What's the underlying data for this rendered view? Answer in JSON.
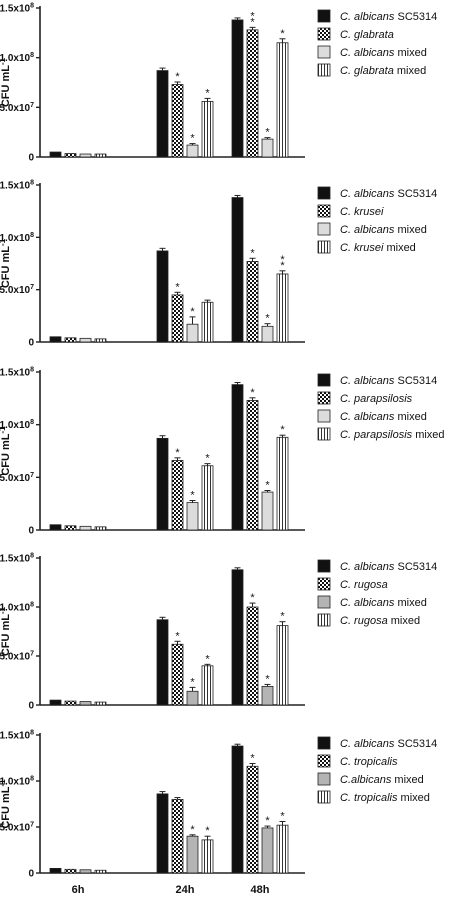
{
  "figure": {
    "categories": [
      "6h",
      "24h",
      "48h"
    ],
    "ylabel": "CFU mL",
    "ylabel_sup": "-1",
    "yticks": [
      {
        "value": 0,
        "mantissa": "0",
        "exp": ""
      },
      {
        "value": 50000000,
        "mantissa": "5.0x10",
        "exp": "7"
      },
      {
        "value": 100000000,
        "mantissa": "1.0x10",
        "exp": "8"
      },
      {
        "value": 150000000,
        "mantissa": "1.5x10",
        "exp": "8"
      }
    ],
    "ylim": [
      0,
      150000000
    ],
    "star": "*",
    "double_star": "**",
    "colors": {
      "black": "#111111",
      "light": "#dcdcdc",
      "mid": "#b4b4b4",
      "white": "#ffffff",
      "axis": "#222222"
    }
  },
  "chart_data": [
    {
      "type": "bar",
      "categories": [
        "6h",
        "24h",
        "48h"
      ],
      "series": [
        {
          "name_italic": "C. albicans",
          "name_rest": " SC5314",
          "pattern": "black",
          "values": [
            5000000,
            87000000,
            138000000
          ],
          "errors": [
            400000,
            2500000,
            2000000
          ],
          "marks": [
            "",
            "",
            ""
          ]
        },
        {
          "name_italic": "C. glabrata",
          "name_rest": "",
          "pattern": "checker",
          "values": [
            3500000,
            73000000,
            128000000
          ],
          "errors": [
            300000,
            2500000,
            2500000
          ],
          "marks": [
            "",
            "*",
            "**"
          ]
        },
        {
          "name_italic": "C. albicans",
          "name_rest": " mixed",
          "pattern": "light",
          "values": [
            3000000,
            12000000,
            18000000
          ],
          "errors": [
            300000,
            1500000,
            1500000
          ],
          "marks": [
            "",
            "*",
            "*"
          ]
        },
        {
          "name_italic": "C. glabrata",
          "name_rest": " mixed",
          "pattern": "stripes",
          "values": [
            3000000,
            56000000,
            115000000
          ],
          "errors": [
            300000,
            3000000,
            4000000
          ],
          "marks": [
            "",
            "*",
            "*"
          ]
        }
      ]
    },
    {
      "type": "bar",
      "categories": [
        "6h",
        "24h",
        "48h"
      ],
      "series": [
        {
          "name_italic": "C. albicans",
          "name_rest": " SC5314",
          "pattern": "black",
          "values": [
            5000000,
            87000000,
            138000000
          ],
          "errors": [
            400000,
            2500000,
            2000000
          ],
          "marks": [
            "",
            "",
            ""
          ]
        },
        {
          "name_italic": "C. krusei",
          "name_rest": "",
          "pattern": "checker",
          "values": [
            4000000,
            45000000,
            77000000
          ],
          "errors": [
            300000,
            2500000,
            3000000
          ],
          "marks": [
            "",
            "*",
            "*"
          ]
        },
        {
          "name_italic": "C. albicans",
          "name_rest": " mixed",
          "pattern": "light",
          "values": [
            3500000,
            17000000,
            15000000
          ],
          "errors": [
            300000,
            7000000,
            2500000
          ],
          "marks": [
            "",
            "*",
            "*"
          ]
        },
        {
          "name_italic": "C. krusei",
          "name_rest": " mixed",
          "pattern": "stripes",
          "values": [
            3000000,
            38000000,
            65000000
          ],
          "errors": [
            300000,
            2000000,
            3000000
          ],
          "marks": [
            "",
            "",
            "**"
          ]
        }
      ]
    },
    {
      "type": "bar",
      "categories": [
        "6h",
        "24h",
        "48h"
      ],
      "series": [
        {
          "name_italic": "C. albicans",
          "name_rest": " SC5314",
          "pattern": "black",
          "values": [
            5000000,
            87000000,
            138000000
          ],
          "errors": [
            400000,
            2500000,
            2000000
          ],
          "marks": [
            "",
            "",
            ""
          ]
        },
        {
          "name_italic": "C. parapsilosis",
          "name_rest": "",
          "pattern": "checker",
          "values": [
            4000000,
            66000000,
            123000000
          ],
          "errors": [
            300000,
            2500000,
            2500000
          ],
          "marks": [
            "",
            "*",
            "*"
          ]
        },
        {
          "name_italic": "C. albicans",
          "name_rest": " mixed",
          "pattern": "light",
          "values": [
            3500000,
            26000000,
            36000000
          ],
          "errors": [
            300000,
            2000000,
            1500000
          ],
          "marks": [
            "",
            "*",
            "*"
          ]
        },
        {
          "name_italic": "C. parapsilosis",
          "name_rest": " mixed",
          "pattern": "stripes",
          "values": [
            3000000,
            61000000,
            88000000
          ],
          "errors": [
            300000,
            2000000,
            2000000
          ],
          "marks": [
            "",
            "*",
            "*"
          ]
        }
      ]
    },
    {
      "type": "bar",
      "categories": [
        "6h",
        "24h",
        "48h"
      ],
      "series": [
        {
          "name_italic": "C. albicans",
          "name_rest": " SC5314",
          "pattern": "black",
          "values": [
            5000000,
            87000000,
            138000000
          ],
          "errors": [
            400000,
            2500000,
            2000000
          ],
          "marks": [
            "",
            "",
            ""
          ]
        },
        {
          "name_italic": "C. rugosa",
          "name_rest": "",
          "pattern": "checker",
          "values": [
            4000000,
            62000000,
            100000000
          ],
          "errors": [
            300000,
            3000000,
            4000000
          ],
          "marks": [
            "",
            "*",
            "*"
          ]
        },
        {
          "name_italic": "C. albicans",
          "name_rest": " mixed",
          "pattern": "mid",
          "values": [
            3500000,
            14000000,
            19000000
          ],
          "errors": [
            300000,
            4000000,
            2000000
          ],
          "marks": [
            "",
            "*",
            "*"
          ]
        },
        {
          "name_italic": "C. rugosa",
          "name_rest": " mixed",
          "pattern": "stripes",
          "values": [
            3000000,
            40000000,
            81000000
          ],
          "errors": [
            300000,
            1500000,
            4000000
          ],
          "marks": [
            "",
            "*",
            "*"
          ]
        }
      ]
    },
    {
      "type": "bar",
      "categories": [
        "6h",
        "24h",
        "48h"
      ],
      "series": [
        {
          "name_italic": "C. albicans",
          "name_rest": " SC5314",
          "pattern": "black",
          "values": [
            5000000,
            86000000,
            138000000
          ],
          "errors": [
            400000,
            2500000,
            2000000
          ],
          "marks": [
            "",
            "",
            ""
          ]
        },
        {
          "name_italic": "C. tropicalis",
          "name_rest": "",
          "pattern": "checker",
          "values": [
            4000000,
            80000000,
            116000000
          ],
          "errors": [
            300000,
            2000000,
            3000000
          ],
          "marks": [
            "",
            "",
            "*"
          ]
        },
        {
          "name_italic": "C.albicans",
          "name_rest": " mixed",
          "pattern": "mid",
          "values": [
            3500000,
            40000000,
            49000000
          ],
          "errors": [
            300000,
            1500000,
            2000000
          ],
          "marks": [
            "",
            "*",
            "*"
          ]
        },
        {
          "name_italic": "C. tropicalis",
          "name_rest": " mixed",
          "pattern": "stripes",
          "values": [
            3000000,
            36000000,
            52000000
          ],
          "errors": [
            300000,
            4000000,
            4000000
          ],
          "marks": [
            "",
            "*",
            "*"
          ]
        }
      ]
    }
  ]
}
